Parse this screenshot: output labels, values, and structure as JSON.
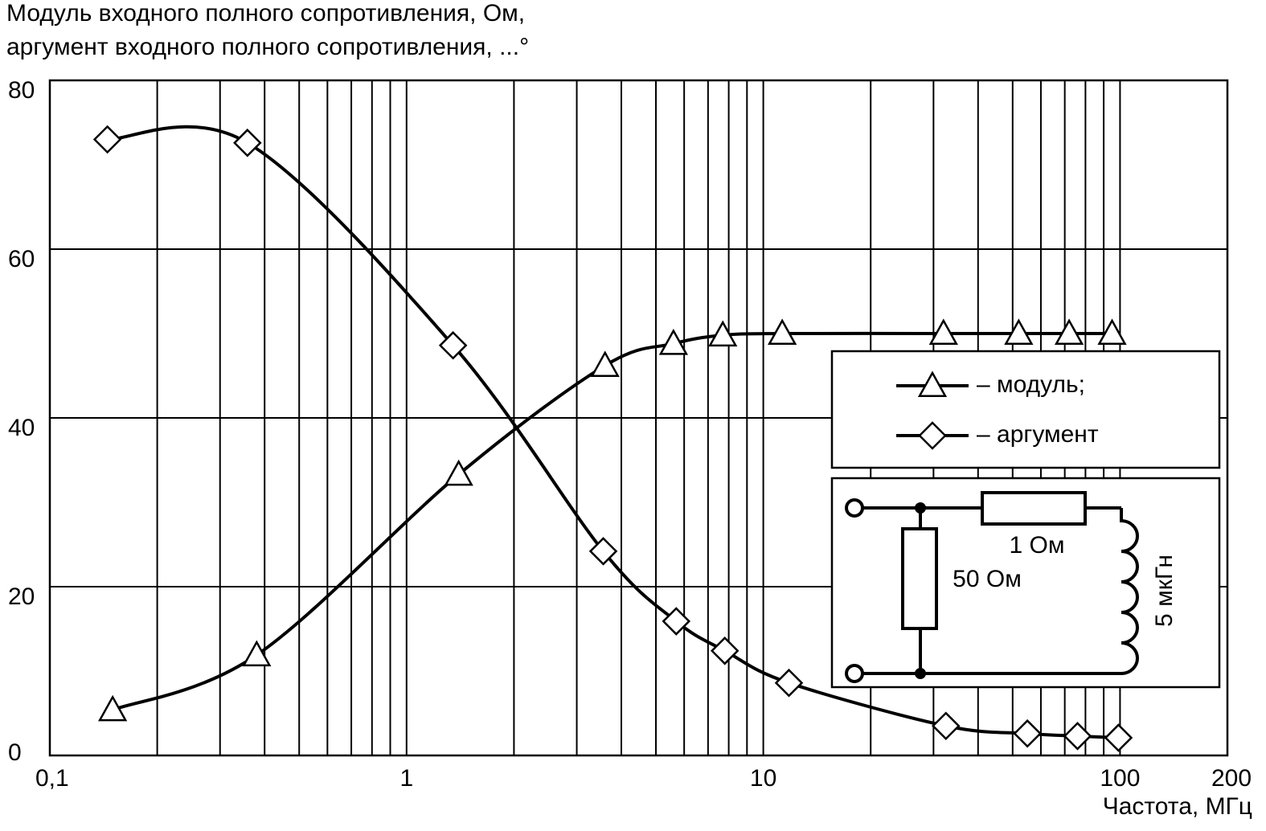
{
  "chart_data": {
    "type": "line",
    "title": [
      "Модуль входного полного сопротивления, Ом,",
      "аргумент входного полного сопротивления, ...°"
    ],
    "x_label": "Частота, МГц",
    "log_x": true,
    "xlim": [
      0.1,
      200
    ],
    "ylim": [
      0,
      80
    ],
    "xticks": [
      {
        "value": 0.1,
        "label": "0,1"
      },
      1,
      10,
      100,
      200
    ],
    "xminor": [
      0.2,
      0.3,
      0.4,
      0.5,
      0.6,
      0.7,
      0.8,
      0.9,
      2,
      3,
      4,
      5,
      6,
      7,
      8,
      9,
      20,
      30,
      40,
      50,
      60,
      70,
      80,
      90
    ],
    "yticks": [
      0,
      20,
      40,
      60,
      80
    ],
    "grid": true,
    "legend": "right",
    "series": [
      {
        "name": "– модуль;",
        "marker": "triangle",
        "color": "#000000",
        "x": [
          0.15,
          0.38,
          1.4,
          3.6,
          5.6,
          7.7,
          11.3,
          32,
          52,
          72,
          95
        ],
        "values": [
          5.4,
          11.9,
          33.3,
          46.2,
          48.8,
          49.8,
          50,
          50,
          50,
          50,
          50
        ]
      },
      {
        "name": "– аргумент",
        "marker": "diamond",
        "color": "#000000",
        "x": [
          0.145,
          0.358,
          1.35,
          3.56,
          5.7,
          7.8,
          11.8,
          32.5,
          55,
          76,
          99
        ],
        "values": [
          73,
          72.6,
          48.6,
          24.2,
          15.9,
          12.4,
          8.6,
          3.5,
          2.6,
          2.3,
          2.1
        ]
      }
    ],
    "annotations": [
      "1 Ом",
      "50 Ом",
      "5 мкГн"
    ]
  }
}
